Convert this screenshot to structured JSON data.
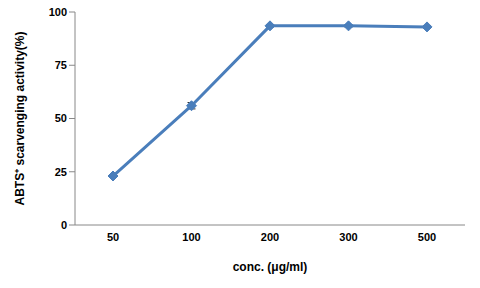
{
  "chart_data": {
    "type": "line",
    "x_label": "conc. (μg/ml)",
    "y_label": "ABTS⁺ scarvenging activity(%)",
    "categories": [
      "50",
      "100",
      "200",
      "300",
      "500"
    ],
    "values": [
      23,
      56,
      93.5,
      93.5,
      93
    ],
    "errors": [
      0.5,
      1.5,
      0.5,
      0.5,
      0.5
    ],
    "color": "#4a7ebb",
    "marker": "diamond",
    "ylim": [
      0,
      100
    ],
    "yticks": [
      0,
      25,
      50,
      75,
      100
    ],
    "grid": false
  }
}
